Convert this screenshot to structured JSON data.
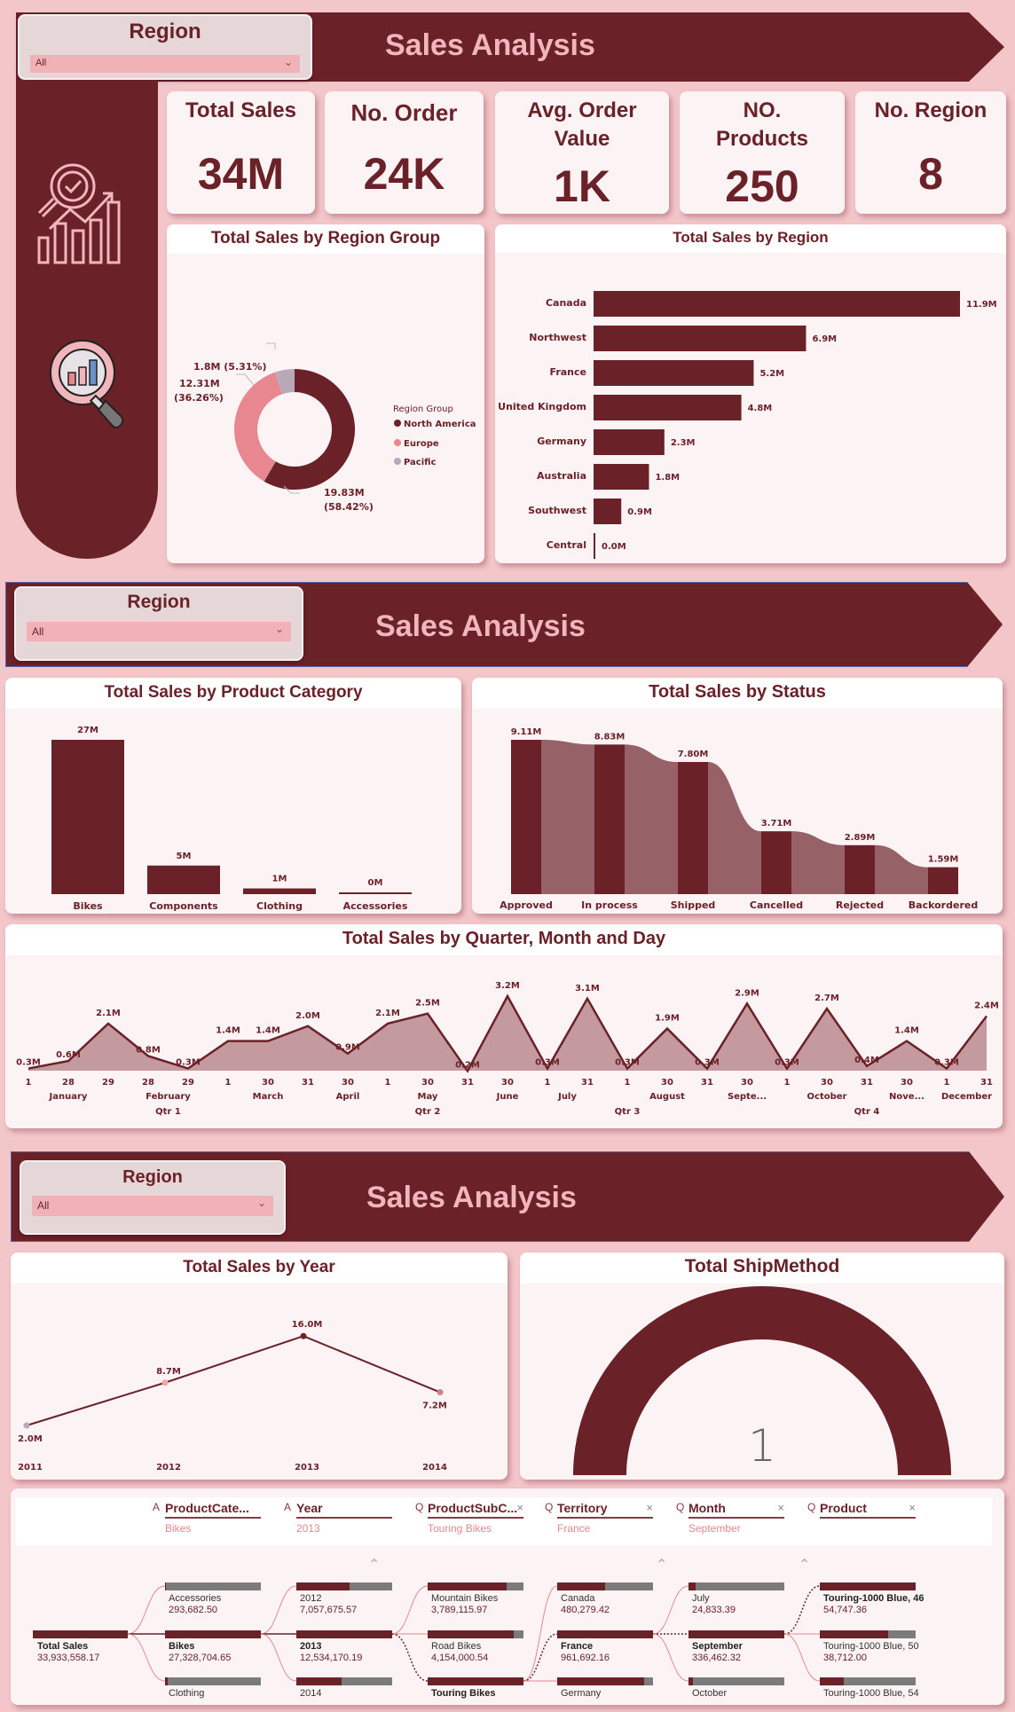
{
  "page1": {
    "banner_title": "Sales Analysis",
    "slicer": {
      "label": "Region",
      "value": "All"
    },
    "kpis": [
      {
        "title": "Total Sales",
        "value": "34M"
      },
      {
        "title": "No. Order",
        "value": "24K"
      },
      {
        "title": "Avg. Order Value",
        "value": "1K"
      },
      {
        "title": "NO. Products",
        "value": "250"
      },
      {
        "title": "No. Region",
        "value": "8"
      }
    ],
    "icons": [
      "analytics-magnifier-chart-icon",
      "magnifier-bar-chart-icon"
    ]
  },
  "page2": {
    "banner_title": "Sales Analysis",
    "slicer": {
      "label": "Region",
      "value": "All"
    }
  },
  "page3": {
    "banner_title": "Sales Analysis",
    "slicer": {
      "label": "Region",
      "value": "All"
    }
  },
  "colors": {
    "primary": "#6b2128",
    "background": "#f3c6ca",
    "card": "#fcf3f4",
    "accent_pink": "#e8878f",
    "pacific": "#b8a9b8",
    "title_text": "#f1b6bc"
  },
  "chart_data": [
    {
      "type": "pie",
      "title": "Total Sales by Region Group",
      "legend_title": "Region Group",
      "categories": [
        "North America",
        "Europe",
        "Pacific"
      ],
      "values": [
        19.83,
        12.31,
        1.8
      ],
      "labels": [
        "19.83M (58.42%)",
        "12.31M (36.26%)",
        "1.8M (5.31%)"
      ],
      "percentages": [
        58.42,
        36.26,
        5.31
      ],
      "colors": [
        "#6b2128",
        "#e8878f",
        "#b8a9b8"
      ],
      "legend_position": "right"
    },
    {
      "type": "bar",
      "orientation": "horizontal",
      "title": "Total Sales by Region",
      "categories": [
        "Canada",
        "Northwest",
        "France",
        "United Kingdom",
        "Germany",
        "Australia",
        "Southwest",
        "Central"
      ],
      "values": [
        11.9,
        6.9,
        5.2,
        4.8,
        2.3,
        1.8,
        0.9,
        0.0
      ],
      "labels": [
        "11.9M",
        "6.9M",
        "5.2M",
        "4.8M",
        "2.3M",
        "1.8M",
        "0.9M",
        "0.0M"
      ]
    },
    {
      "type": "bar",
      "title": "Total Sales by Product Category",
      "categories": [
        "Bikes",
        "Components",
        "Clothing",
        "Accessories"
      ],
      "values": [
        27,
        5,
        1,
        0
      ],
      "labels": [
        "27M",
        "5M",
        "1M",
        "0M"
      ]
    },
    {
      "type": "bar",
      "subtype": "ribbon",
      "title": "Total Sales by Status",
      "categories": [
        "Approved",
        "In process",
        "Shipped",
        "Cancelled",
        "Rejected",
        "Backordered"
      ],
      "values": [
        9.11,
        8.83,
        7.8,
        3.71,
        2.89,
        1.59
      ],
      "labels": [
        "9.11M",
        "8.83M",
        "7.80M",
        "3.71M",
        "2.89M",
        "1.59M"
      ]
    },
    {
      "type": "area",
      "title": "Total Sales by Quarter, Month and Day",
      "x_days": [
        "1",
        "28",
        "29",
        "28",
        "29",
        "1",
        "30",
        "31",
        "30",
        "1",
        "30",
        "31",
        "30",
        "1",
        "31",
        "1",
        "30",
        "31",
        "30",
        "1",
        "30",
        "31",
        "30",
        "1",
        "31"
      ],
      "values": [
        0.3,
        0.6,
        2.1,
        0.8,
        0.3,
        1.4,
        1.4,
        2.0,
        0.9,
        2.1,
        2.5,
        0.2,
        3.2,
        0.3,
        3.1,
        0.3,
        1.9,
        0.3,
        2.9,
        0.3,
        2.7,
        0.4,
        1.4,
        0.3,
        2.4
      ],
      "labels": [
        "0.3M",
        "0.6M",
        "2.1M",
        "0.8M",
        "0.3M",
        "1.4M",
        "1.4M",
        "2.0M",
        "0.9M",
        "2.1M",
        "2.5M",
        "0.2M",
        "3.2M",
        "0.3M",
        "3.1M",
        "0.3M",
        "1.9M",
        "0.3M",
        "2.9M",
        "0.3M",
        "2.7M",
        "0.4M",
        "1.4M",
        "0.3M",
        "2.4M"
      ],
      "months": [
        {
          "label": "January",
          "idx": 1
        },
        {
          "label": "February",
          "idx": 3.5
        },
        {
          "label": "March",
          "idx": 6
        },
        {
          "label": "April",
          "idx": 8
        },
        {
          "label": "May",
          "idx": 10
        },
        {
          "label": "June",
          "idx": 12
        },
        {
          "label": "July",
          "idx": 13.5
        },
        {
          "label": "August",
          "idx": 16
        },
        {
          "label": "Septe...",
          "idx": 18
        },
        {
          "label": "October",
          "idx": 20
        },
        {
          "label": "Nove...",
          "idx": 22
        },
        {
          "label": "December",
          "idx": 23.5
        }
      ],
      "quarters": [
        {
          "label": "Qtr 1",
          "idx": 3.5
        },
        {
          "label": "Qtr 2",
          "idx": 10
        },
        {
          "label": "Qtr 3",
          "idx": 15
        },
        {
          "label": "Qtr 4",
          "idx": 21
        }
      ]
    },
    {
      "type": "line",
      "title": "Total Sales by Year",
      "categories": [
        "2011",
        "2012",
        "2013",
        "2014"
      ],
      "values": [
        2.0,
        8.7,
        16.0,
        7.2
      ],
      "labels": [
        "2.0M",
        "8.7M",
        "16.0M",
        "7.2M"
      ]
    },
    {
      "type": "gauge",
      "title": "Total ShipMethod",
      "value": 1,
      "label": "1"
    }
  ],
  "decomp_tree": {
    "root": {
      "label": "Total Sales",
      "value": "33,933,558.17"
    },
    "levels": [
      {
        "field": "ProductCate...",
        "selected": "Bikes",
        "icon": "lock-icon",
        "closable": false,
        "items": [
          {
            "label": "Accessories",
            "value": "293,682.50",
            "pct": 1,
            "bold": false
          },
          {
            "label": "Bikes",
            "value": "27,328,704.65",
            "pct": 100,
            "bold": true
          },
          {
            "label": "Clothing",
            "value": "",
            "pct": 3,
            "bold": false
          }
        ]
      },
      {
        "field": "Year",
        "selected": "2013",
        "icon": "lock-icon",
        "closable": false,
        "items": [
          {
            "label": "2012",
            "value": "7,057,675.57",
            "pct": 56,
            "bold": false
          },
          {
            "label": "2013",
            "value": "12,534,170.19",
            "pct": 100,
            "bold": true
          },
          {
            "label": "2014",
            "value": "",
            "pct": 47,
            "bold": false
          }
        ]
      },
      {
        "field": "ProductSubC...",
        "selected": "Touring Bikes",
        "icon": "lightbulb-icon",
        "closable": true,
        "items": [
          {
            "label": "Mountain Bikes",
            "value": "3,789,115.97",
            "pct": 82,
            "bold": false
          },
          {
            "label": "Road Bikes",
            "value": "4,154,000.54",
            "pct": 90,
            "bold": false
          },
          {
            "label": "Touring Bikes",
            "value": "",
            "pct": 100,
            "bold": true
          }
        ]
      },
      {
        "field": "Territory",
        "selected": "France",
        "icon": "lightbulb-icon",
        "closable": true,
        "items": [
          {
            "label": "Canada",
            "value": "480,279.42",
            "pct": 50,
            "bold": false
          },
          {
            "label": "France",
            "value": "961,692.16",
            "pct": 100,
            "bold": true
          },
          {
            "label": "Germany",
            "value": "",
            "pct": 91,
            "bold": false
          }
        ]
      },
      {
        "field": "Month",
        "selected": "September",
        "icon": "lightbulb-icon",
        "closable": true,
        "items": [
          {
            "label": "July",
            "value": "24,833.39",
            "pct": 7,
            "bold": false
          },
          {
            "label": "September",
            "value": "336,462.32",
            "pct": 100,
            "bold": true
          },
          {
            "label": "October",
            "value": "",
            "pct": 5,
            "bold": false
          }
        ]
      },
      {
        "field": "Product",
        "selected": "",
        "icon": "lightbulb-icon",
        "closable": true,
        "items": [
          {
            "label": "Touring-1000 Blue, 46",
            "value": "54,747.36",
            "pct": 100,
            "bold": true
          },
          {
            "label": "Touring-1000 Blue, 50",
            "value": "38,712.00",
            "pct": 71,
            "bold": false
          },
          {
            "label": "Touring-1000 Blue, 54",
            "value": "",
            "pct": 25,
            "bold": false
          }
        ]
      }
    ]
  }
}
